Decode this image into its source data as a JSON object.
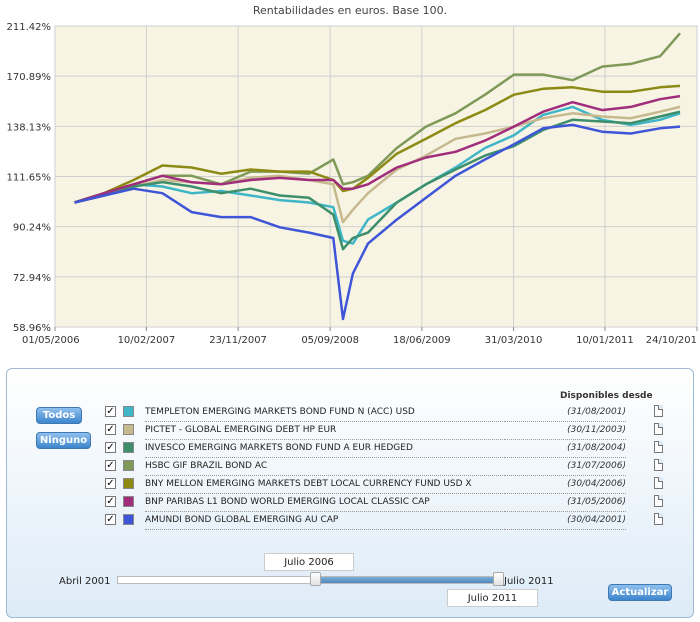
{
  "chart_data": {
    "type": "line",
    "title": "Rentabilidades en euros. Base 100.",
    "y_scale": "log",
    "ylim": [
      58.96,
      211.42
    ],
    "y_ticks": [
      "211.42%",
      "170.89%",
      "138.13%",
      "111.65%",
      "90.24%",
      "72.94%",
      "58.96%"
    ],
    "y_tick_values": [
      211.42,
      170.89,
      138.13,
      111.65,
      90.24,
      72.94,
      58.96
    ],
    "x_ticks": [
      "01/05/2006",
      "10/02/2007",
      "23/11/2007",
      "05/09/2008",
      "18/06/2009",
      "31/03/2010",
      "10/01/2011",
      "24/10/201"
    ],
    "x_tick_dates": [
      "2006-05-01",
      "2007-02-10",
      "2007-11-23",
      "2008-09-05",
      "2009-06-18",
      "2010-03-31",
      "2011-01-10",
      "2011-10-24"
    ],
    "grid": true,
    "series": [
      {
        "name": "TEMPLETON EMERGING MARKETS BOND FUND N (ACC) USD",
        "color": "#3fb6c8",
        "x": [
          "2006-07-01",
          "2006-10-01",
          "2007-01-01",
          "2007-04-01",
          "2007-07-01",
          "2007-10-01",
          "2008-01-01",
          "2008-04-01",
          "2008-07-01",
          "2008-09-15",
          "2008-10-15",
          "2008-11-15",
          "2009-01-01",
          "2009-04-01",
          "2009-07-01",
          "2009-10-01",
          "2010-01-01",
          "2010-04-01",
          "2010-07-01",
          "2010-10-01",
          "2011-01-01",
          "2011-04-01",
          "2011-07-01",
          "2011-09-01"
        ],
        "y": [
          100,
          104,
          108,
          107,
          104,
          105,
          103,
          101,
          100,
          98,
          85,
          84,
          93,
          100,
          108,
          116,
          126,
          133,
          145,
          150,
          142,
          139,
          142,
          146
        ]
      },
      {
        "name": "PICTET - GLOBAL EMERGING DEBT HP EUR",
        "color": "#c7b98e",
        "x": [
          "2006-07-01",
          "2006-10-01",
          "2007-01-01",
          "2007-04-01",
          "2007-07-01",
          "2007-10-01",
          "2008-01-01",
          "2008-04-01",
          "2008-07-01",
          "2008-09-15",
          "2008-10-15",
          "2008-11-15",
          "2009-01-01",
          "2009-04-01",
          "2009-07-01",
          "2009-10-01",
          "2010-01-01",
          "2010-04-01",
          "2010-07-01",
          "2010-10-01",
          "2011-01-01",
          "2011-04-01",
          "2011-07-01",
          "2011-09-01"
        ],
        "y": [
          100,
          103,
          107,
          110,
          109,
          108,
          111,
          112,
          110,
          108,
          92,
          97,
          104,
          115,
          122,
          131,
          134,
          138,
          143,
          146,
          144,
          143,
          147,
          150
        ]
      },
      {
        "name": "INVESCO EMERGING MARKETS BOND FUND A EUR HEDGED",
        "color": "#3d8f6c",
        "x": [
          "2006-07-01",
          "2006-10-01",
          "2007-01-01",
          "2007-04-01",
          "2007-07-01",
          "2007-10-01",
          "2008-01-01",
          "2008-04-01",
          "2008-07-01",
          "2008-09-15",
          "2008-10-15",
          "2008-11-15",
          "2009-01-01",
          "2009-04-01",
          "2009-07-01",
          "2009-10-01",
          "2010-01-01",
          "2010-04-01",
          "2010-07-01",
          "2010-10-01",
          "2011-01-01",
          "2011-04-01",
          "2011-07-01",
          "2011-09-01"
        ],
        "y": [
          100,
          103,
          107,
          109,
          107,
          104,
          106,
          103,
          102,
          95,
          82,
          86,
          88,
          100,
          108,
          115,
          122,
          127,
          136,
          142,
          141,
          140,
          144,
          147
        ]
      },
      {
        "name": "HSBC GIF BRAZIL BOND AC",
        "color": "#7f9a58",
        "x": [
          "2006-07-01",
          "2006-10-01",
          "2007-01-01",
          "2007-04-01",
          "2007-07-01",
          "2007-10-01",
          "2008-01-01",
          "2008-04-01",
          "2008-07-01",
          "2008-09-15",
          "2008-10-15",
          "2008-11-15",
          "2009-01-01",
          "2009-04-01",
          "2009-07-01",
          "2009-10-01",
          "2010-01-01",
          "2010-04-01",
          "2010-07-01",
          "2010-10-01",
          "2011-01-01",
          "2011-04-01",
          "2011-07-01",
          "2011-09-01"
        ],
        "y": [
          100,
          104,
          108,
          112,
          112,
          108,
          114,
          114,
          113,
          120,
          108,
          109,
          112,
          126,
          138,
          146,
          158,
          172,
          172,
          168,
          178,
          180,
          186,
          205
        ]
      },
      {
        "name": "BNY MELLON EMERGING MARKETS DEBT LOCAL CURRENCY FUND USD X",
        "color": "#8c8a13",
        "x": [
          "2006-07-01",
          "2006-10-01",
          "2007-01-01",
          "2007-04-01",
          "2007-07-01",
          "2007-10-01",
          "2008-01-01",
          "2008-04-01",
          "2008-07-01",
          "2008-09-15",
          "2008-10-15",
          "2008-11-15",
          "2009-01-01",
          "2009-04-01",
          "2009-07-01",
          "2009-10-01",
          "2010-01-01",
          "2010-04-01",
          "2010-07-01",
          "2010-10-01",
          "2011-01-01",
          "2011-04-01",
          "2011-07-01",
          "2011-09-01"
        ],
        "y": [
          100,
          104,
          110,
          117,
          116,
          113,
          115,
          114,
          114,
          110,
          105,
          106,
          111,
          123,
          131,
          140,
          148,
          158,
          162,
          163,
          160,
          160,
          163,
          164
        ]
      },
      {
        "name": "BNP PARIBAS L1 BOND WORLD EMERGING LOCAL CLASSIC CAP",
        "color": "#a02e7c",
        "x": [
          "2006-07-01",
          "2006-10-01",
          "2007-01-01",
          "2007-04-01",
          "2007-07-01",
          "2007-10-01",
          "2008-01-01",
          "2008-04-01",
          "2008-07-01",
          "2008-09-15",
          "2008-10-15",
          "2008-11-15",
          "2009-01-01",
          "2009-04-01",
          "2009-07-01",
          "2009-10-01",
          "2010-01-01",
          "2010-04-01",
          "2010-07-01",
          "2010-10-01",
          "2011-01-01",
          "2011-04-01",
          "2011-07-01",
          "2011-09-01"
        ],
        "y": [
          100,
          104,
          108,
          112,
          109,
          108,
          110,
          111,
          110,
          110,
          106,
          106,
          108,
          116,
          121,
          124,
          130,
          138,
          147,
          153,
          148,
          150,
          155,
          157
        ]
      },
      {
        "name": "AMUNDI BOND GLOBAL EMERGING AU CAP",
        "color": "#3f55d8",
        "x": [
          "2006-07-01",
          "2006-10-01",
          "2007-01-01",
          "2007-04-01",
          "2007-07-01",
          "2007-10-01",
          "2008-01-01",
          "2008-04-01",
          "2008-07-01",
          "2008-09-15",
          "2008-10-15",
          "2008-11-15",
          "2009-01-01",
          "2009-04-01",
          "2009-07-01",
          "2009-10-01",
          "2010-01-01",
          "2010-04-01",
          "2010-07-01",
          "2010-10-01",
          "2011-01-01",
          "2011-04-01",
          "2011-07-01",
          "2011-09-01"
        ],
        "y": [
          100,
          103,
          106,
          104,
          96,
          94,
          94,
          90,
          88,
          86,
          61,
          74,
          84,
          93,
          102,
          112,
          120,
          128,
          137,
          139,
          135,
          134,
          137,
          138
        ]
      }
    ]
  },
  "panel": {
    "btn_all": "Todos",
    "btn_none": "Ninguno",
    "col_header": "Disponibles desde",
    "check_mark": "✓",
    "funds": [
      {
        "name": "TEMPLETON EMERGING MARKETS BOND FUND N (ACC) USD",
        "date": "(31/08/2001)",
        "color": "#3fb6c8"
      },
      {
        "name": "PICTET - GLOBAL EMERGING DEBT HP EUR",
        "date": "(30/11/2003)",
        "color": "#c7b98e"
      },
      {
        "name": "INVESCO EMERGING MARKETS BOND FUND A EUR HEDGED",
        "date": "(31/08/2004)",
        "color": "#3d8f6c"
      },
      {
        "name": "HSBC GIF BRAZIL BOND AC",
        "date": "(31/07/2006)",
        "color": "#7f9a58"
      },
      {
        "name": "BNY MELLON EMERGING MARKETS DEBT LOCAL CURRENCY FUND USD X",
        "date": "(30/04/2006)",
        "color": "#8c8a13"
      },
      {
        "name": "BNP PARIBAS L1 BOND WORLD EMERGING LOCAL CLASSIC CAP",
        "date": "(31/05/2006)",
        "color": "#a02e7c"
      },
      {
        "name": "AMUNDI BOND GLOBAL EMERGING AU CAP",
        "date": "(30/04/2001)",
        "color": "#3f55d8"
      }
    ],
    "range_start_label": "Abril 2001",
    "range_end_label": "Julio 2011",
    "selected_from": "Julio 2006",
    "selected_to": "Julio 2011",
    "btn_update": "Actualizar"
  }
}
